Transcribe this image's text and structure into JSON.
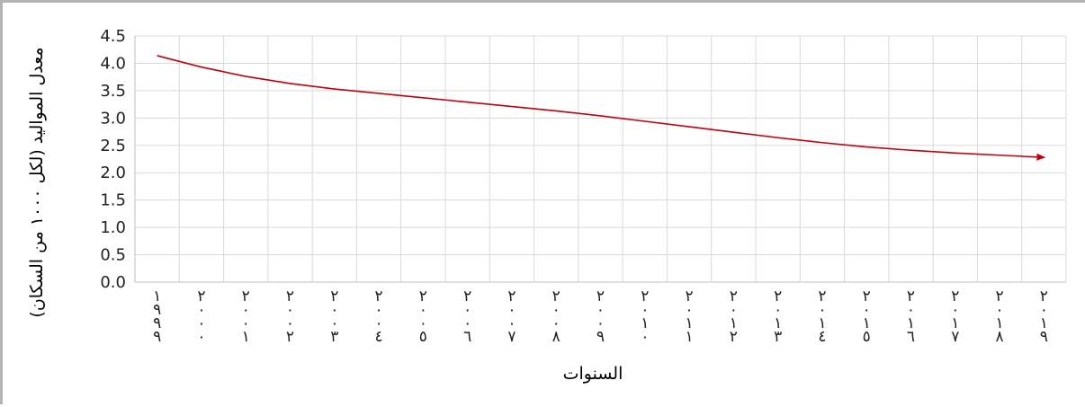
{
  "chart_data": {
    "type": "line",
    "title": "",
    "xlabel": "السنوات",
    "ylabel": "معدل المواليد (لكل ١٠٠٠ من السكان)",
    "categories": [
      "١٩٩٩",
      "٢٠٠٠",
      "٢٠٠١",
      "٢٠٠٢",
      "٢٠٠٣",
      "٢٠٠٤",
      "٢٠٠٥",
      "٢٠٠٦",
      "٢٠٠٧",
      "٢٠٠٨",
      "٢٠٠٩",
      "٢٠١٠",
      "٢٠١١",
      "٢٠١٢",
      "٢٠١٣",
      "٢٠١٤",
      "٢٠١٥",
      "٢٠١٦",
      "٢٠١٧",
      "٢٠١٨",
      "٢٠١٩"
    ],
    "series": [
      {
        "color": "#c0000f",
        "values": [
          4.14,
          3.93,
          3.76,
          3.63,
          3.53,
          3.45,
          3.37,
          3.29,
          3.21,
          3.13,
          3.04,
          2.94,
          2.84,
          2.74,
          2.64,
          2.55,
          2.47,
          2.41,
          2.36,
          2.32,
          2.28
        ]
      }
    ],
    "yticks": [
      "0.0",
      "0.5",
      "1.0",
      "1.5",
      "2.0",
      "2.5",
      "3.0",
      "3.5",
      "4.0",
      "4.5"
    ],
    "ylim": [
      0,
      4.5
    ],
    "grid": true,
    "legend": "none",
    "line_end_marker": "arrow"
  }
}
